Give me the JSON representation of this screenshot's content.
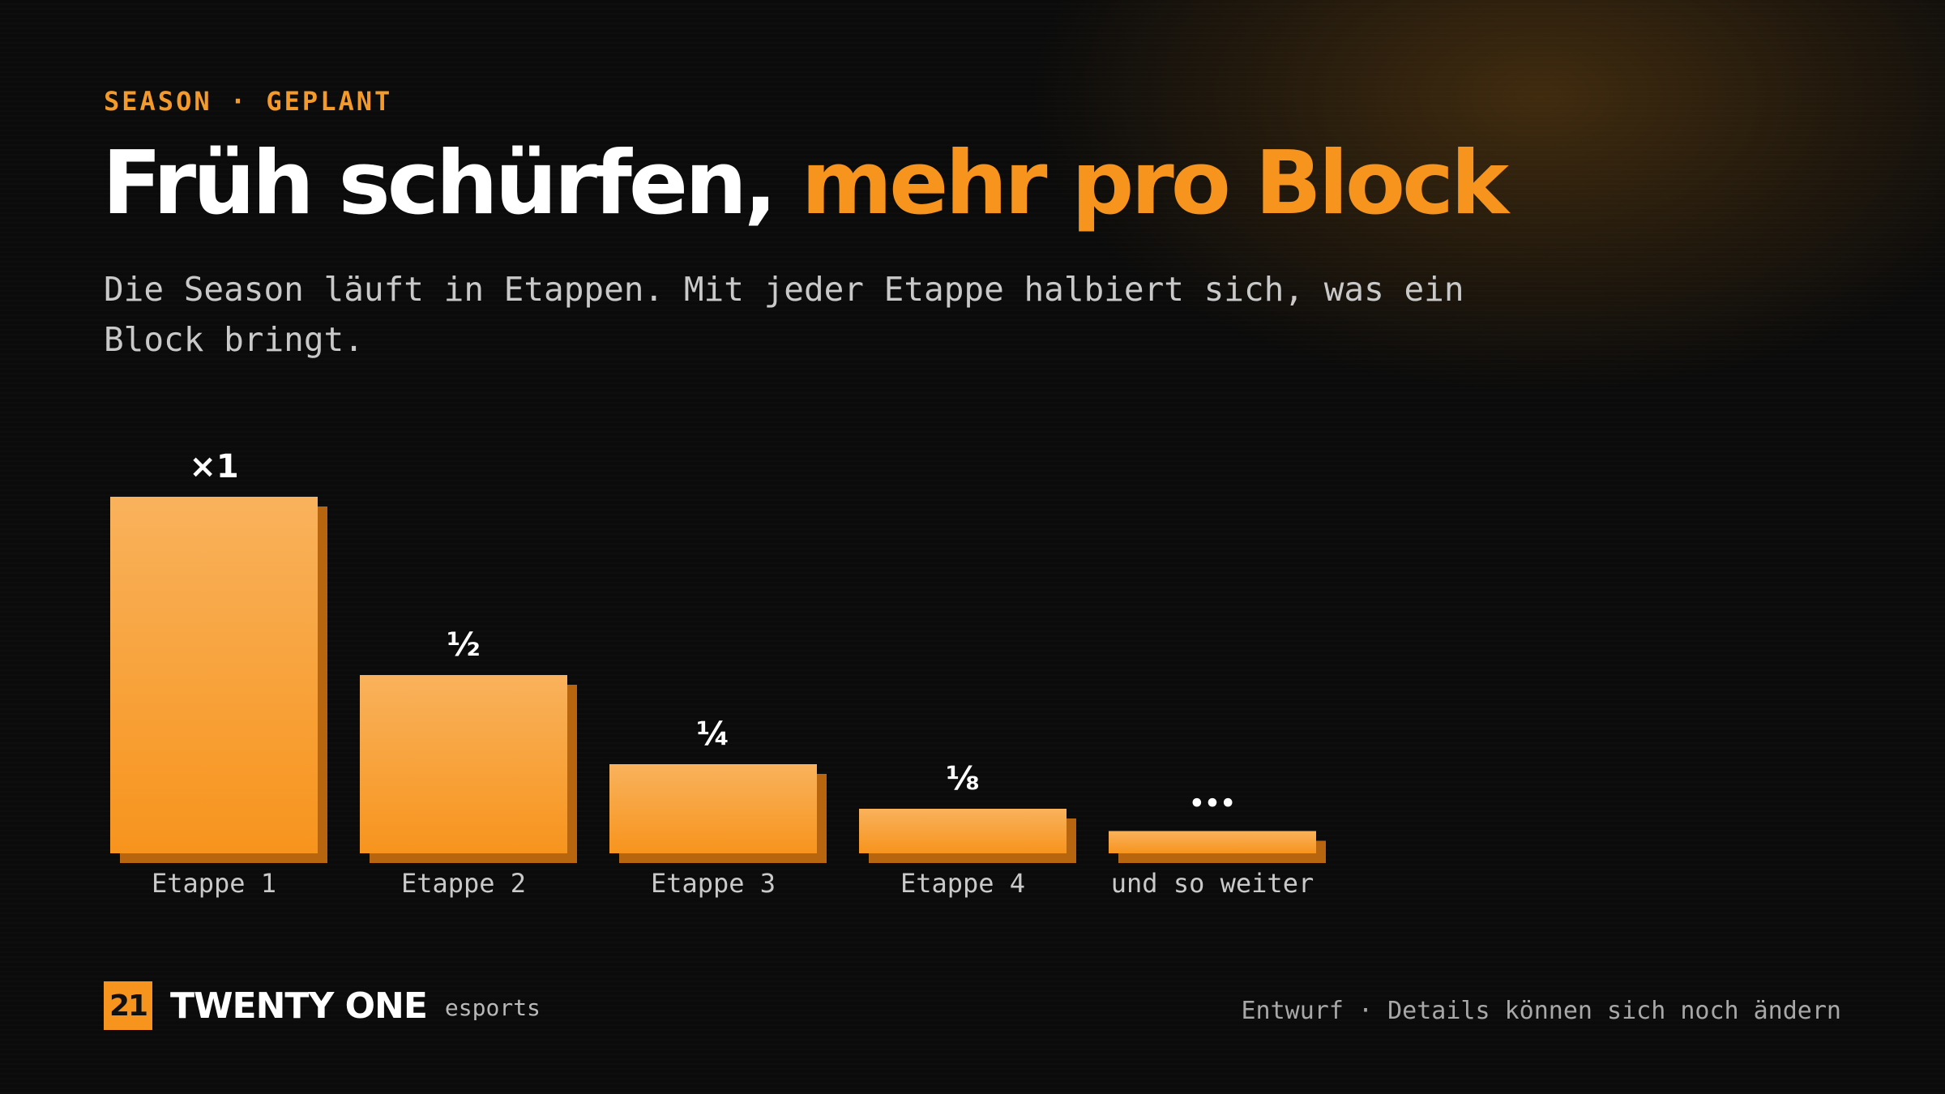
{
  "header": {
    "eyebrow": "SEASON · GEPLANT",
    "title_main": "Früh schürfen,",
    "title_accent": "mehr pro Block",
    "subtitle": "Die Season läuft in Etappen. Mit jeder Etappe halbiert sich, was ein\nBlock bringt."
  },
  "chart_data": {
    "type": "bar",
    "categories": [
      "Etappe 1",
      "Etappe 2",
      "Etappe 3",
      "Etappe 4",
      "und so weiter"
    ],
    "values": [
      1,
      0.5,
      0.25,
      0.125,
      0.0625
    ],
    "data_labels": [
      "×1",
      "½",
      "¼",
      "⅛",
      "•••"
    ],
    "title": "",
    "xlabel": "",
    "ylabel": "",
    "ylim": [
      0,
      1
    ],
    "grid": false,
    "legend": "none",
    "bar_color_top": "#f9b25c",
    "bar_color_bottom": "#f7941d",
    "bar_shadow_color": "#b8650f"
  },
  "footer": {
    "logo_mark": "21",
    "brand": "TWENTY ONE",
    "brand_sub": "esports",
    "note": "Entwurf · Details können sich noch ändern"
  },
  "colors": {
    "accent": "#f7941d",
    "background": "#0b0b0b",
    "text_muted": "#c9c9c9"
  }
}
